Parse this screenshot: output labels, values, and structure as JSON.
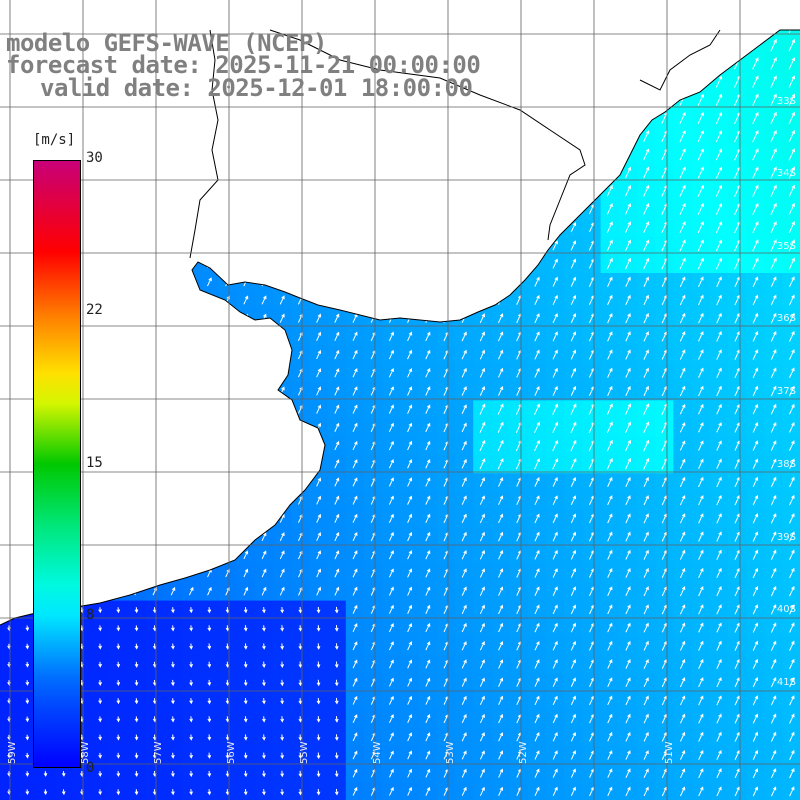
{
  "title": {
    "line1": "modelo GEFS-WAVE (NCEP)",
    "line2": "forecast date: 2025-11-21 00:00:00",
    "line3": "valid date: 2025-12-01 18:00:00"
  },
  "colorbar": {
    "unit": "[m/s]",
    "ticks": [
      "30",
      "22",
      "15",
      "8",
      "0"
    ],
    "range": [
      0,
      30
    ]
  },
  "lat_labels": [
    "33S",
    "34S",
    "35S",
    "36S",
    "37S",
    "38S",
    "39S",
    "40S",
    "41S"
  ],
  "lon_labels": [
    "59W",
    "58W",
    "57W",
    "56W",
    "55W",
    "54W",
    "53W",
    "52W",
    "51W"
  ],
  "colors": {
    "land": "#ffffff",
    "coast": "#000000",
    "grid": "#606060",
    "arrows": "#ffffff",
    "title": "#808080"
  }
}
